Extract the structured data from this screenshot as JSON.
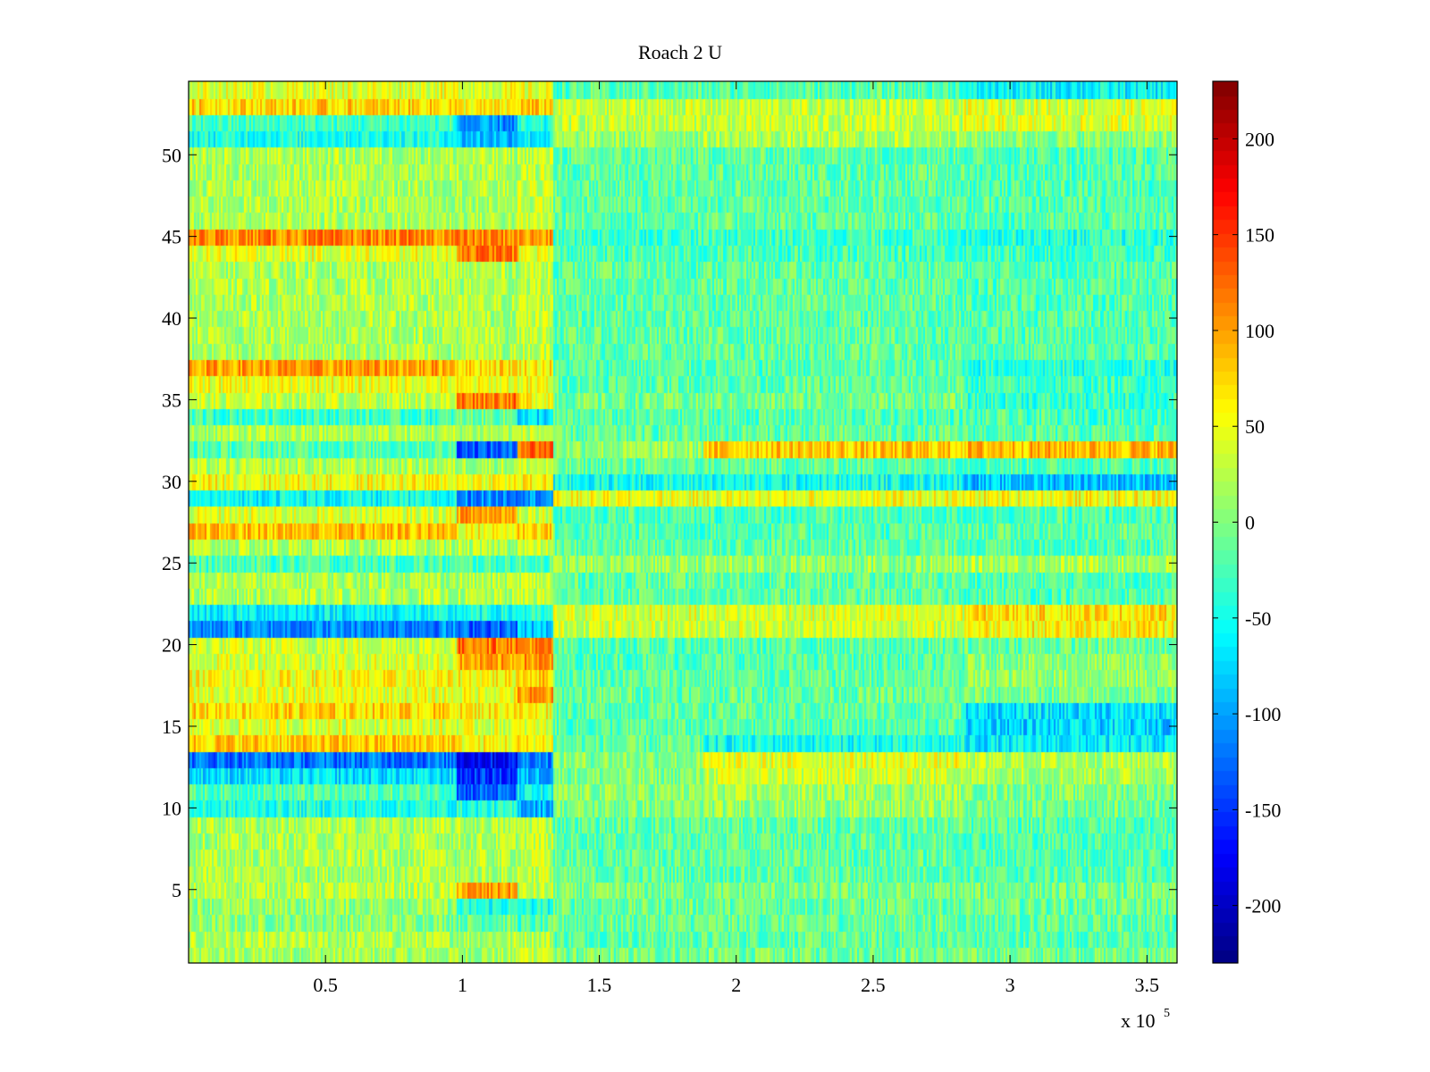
{
  "chart_data": {
    "type": "heatmap",
    "title": "Roach 2 U",
    "xlabel": "",
    "ylabel": "",
    "x_multiplier_label": "x 10",
    "x_multiplier_exponent": "5",
    "xlim": [
      0,
      361000
    ],
    "ylim": [
      0.5,
      54.5
    ],
    "x_ticks": [
      50000,
      100000,
      150000,
      200000,
      250000,
      300000,
      350000
    ],
    "x_tick_labels": [
      "0.5",
      "1",
      "1.5",
      "2",
      "2.5",
      "3",
      "3.5"
    ],
    "y_ticks": [
      5,
      10,
      15,
      20,
      25,
      30,
      35,
      40,
      45,
      50
    ],
    "y_tick_labels": [
      "5",
      "10",
      "15",
      "20",
      "25",
      "30",
      "35",
      "40",
      "45",
      "50"
    ],
    "rows": 54,
    "colormap": "jet",
    "clim": [
      -230,
      230
    ],
    "colorbar_ticks": [
      200,
      150,
      100,
      50,
      0,
      -50,
      -100,
      -150,
      -200
    ],
    "colorbar_tick_labels": [
      "200",
      "150",
      "100",
      "50",
      "0",
      "-50",
      "-100",
      "-150",
      "-200"
    ],
    "segments_x": [
      0,
      98000,
      120000,
      133000,
      188000,
      283000,
      361000
    ],
    "row_means": [
      {
        "row": 1,
        "means": [
          15,
          15,
          40,
          -5,
          -5,
          -5
        ]
      },
      {
        "row": 3,
        "means": [
          5,
          -10,
          -25,
          -10,
          -10,
          -15
        ]
      },
      {
        "row": 4,
        "means": [
          10,
          -45,
          -45,
          -10,
          -10,
          -10
        ]
      },
      {
        "row": 5,
        "means": [
          25,
          100,
          25,
          -5,
          -5,
          -5
        ]
      },
      {
        "row": 10,
        "means": [
          -45,
          -45,
          -90,
          0,
          10,
          -5
        ]
      },
      {
        "row": 11,
        "means": [
          -20,
          -130,
          -60,
          5,
          15,
          0
        ]
      },
      {
        "row": 12,
        "means": [
          -70,
          -150,
          -90,
          0,
          35,
          20
        ]
      },
      {
        "row": 13,
        "means": [
          -120,
          -170,
          -110,
          5,
          45,
          25
        ]
      },
      {
        "row": 14,
        "means": [
          80,
          55,
          60,
          -15,
          -50,
          -65
        ]
      },
      {
        "row": 15,
        "means": [
          40,
          40,
          40,
          -20,
          -20,
          -75
        ]
      },
      {
        "row": 16,
        "means": [
          75,
          65,
          60,
          -15,
          -15,
          -70
        ]
      },
      {
        "row": 17,
        "means": [
          45,
          50,
          100,
          -10,
          -10,
          -5
        ]
      },
      {
        "row": 18,
        "means": [
          55,
          60,
          80,
          -15,
          -15,
          10
        ]
      },
      {
        "row": 19,
        "means": [
          40,
          95,
          105,
          -20,
          -20,
          5
        ]
      },
      {
        "row": 20,
        "means": [
          35,
          120,
          110,
          -20,
          -20,
          -10
        ]
      },
      {
        "row": 21,
        "means": [
          -110,
          -125,
          -85,
          35,
          35,
          60
        ]
      },
      {
        "row": 22,
        "means": [
          -60,
          -50,
          -45,
          40,
          40,
          70
        ]
      },
      {
        "row": 25,
        "means": [
          -25,
          -25,
          -20,
          10,
          10,
          20
        ]
      },
      {
        "row": 27,
        "means": [
          85,
          55,
          80,
          -20,
          -20,
          -15
        ]
      },
      {
        "row": 28,
        "means": [
          40,
          100,
          40,
          -25,
          -25,
          -25
        ]
      },
      {
        "row": 29,
        "means": [
          -55,
          -110,
          -100,
          50,
          50,
          55
        ]
      },
      {
        "row": 30,
        "means": [
          55,
          55,
          60,
          -50,
          -50,
          -85
        ]
      },
      {
        "row": 32,
        "means": [
          -20,
          -130,
          130,
          10,
          80,
          90
        ]
      },
      {
        "row": 34,
        "means": [
          -30,
          -10,
          -70,
          -20,
          -20,
          -25
        ]
      },
      {
        "row": 35,
        "means": [
          30,
          120,
          60,
          -5,
          -5,
          -35
        ]
      },
      {
        "row": 36,
        "means": [
          50,
          50,
          50,
          -15,
          -15,
          -30
        ]
      },
      {
        "row": 37,
        "means": [
          100,
          75,
          65,
          -20,
          -20,
          -40
        ]
      },
      {
        "row": 44,
        "means": [
          45,
          120,
          50,
          -25,
          -25,
          -30
        ]
      },
      {
        "row": 45,
        "means": [
          110,
          110,
          100,
          -30,
          -30,
          -40
        ]
      },
      {
        "row": 51,
        "means": [
          -45,
          -85,
          -60,
          10,
          20,
          5
        ]
      },
      {
        "row": 52,
        "means": [
          -30,
          -110,
          -50,
          30,
          30,
          40
        ]
      },
      {
        "row": 53,
        "means": [
          75,
          60,
          80,
          30,
          30,
          40
        ]
      },
      {
        "row": 54,
        "means": [
          45,
          45,
          45,
          -20,
          -20,
          -60
        ]
      }
    ]
  }
}
